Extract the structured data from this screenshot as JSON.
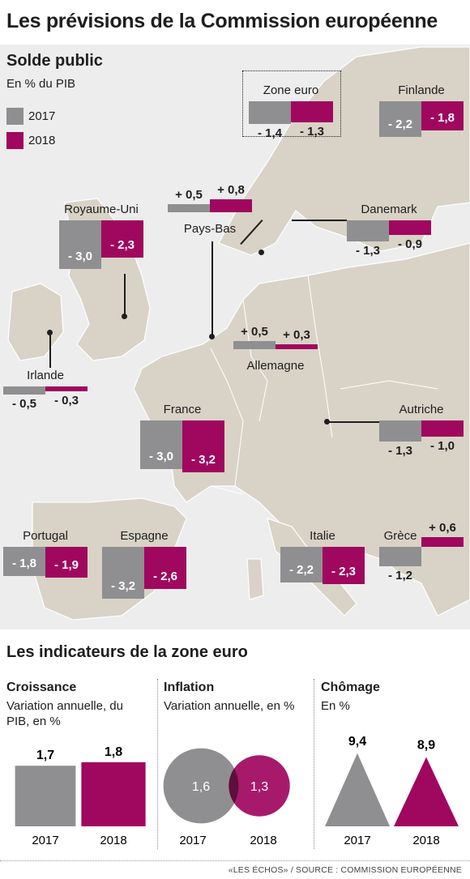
{
  "header": {
    "title": "Les prévisions de la Commission européenne",
    "balance_title": "Solde public",
    "balance_unit": "En % du PIB",
    "indicators_title": "Les indicateurs de la zone euro",
    "footer": "«LES ÉCHOS» / SOURCE : COMMISSION EUROPÉENNE"
  },
  "legend": [
    {
      "label": "2017",
      "color": "#8f8f91"
    },
    {
      "label": "2018",
      "color": "#a0075e"
    }
  ],
  "colors": {
    "year2017": "#8f8f91",
    "year2018": "#a0075e",
    "land": "#d8d3c6",
    "sea": "#ededed",
    "border": "#ffffff"
  },
  "chart_data": [
    {
      "type": "bar",
      "title": "Solde public",
      "subtitle": "En % du PIB",
      "series_names": [
        "2017",
        "2018"
      ],
      "countries": [
        {
          "name": "Zone euro",
          "v2017": "- 1,4",
          "v2018": "- 1,3",
          "n2017": -1.4,
          "n2018": -1.3
        },
        {
          "name": "Finlande",
          "v2017": "- 2,2",
          "v2018": "- 1,8",
          "n2017": -2.2,
          "n2018": -1.8
        },
        {
          "name": "Pays-Bas",
          "v2017": "+ 0,5",
          "v2018": "+ 0,8",
          "n2017": 0.5,
          "n2018": 0.8
        },
        {
          "name": "Royaume-Uni",
          "v2017": "- 3,0",
          "v2018": "- 2,3",
          "n2017": -3.0,
          "n2018": -2.3
        },
        {
          "name": "Danemark",
          "v2017": "- 1,3",
          "v2018": "- 0,9",
          "n2017": -1.3,
          "n2018": -0.9
        },
        {
          "name": "Irlande",
          "v2017": "- 0,5",
          "v2018": "- 0,3",
          "n2017": -0.5,
          "n2018": -0.3
        },
        {
          "name": "Allemagne",
          "v2017": "+ 0,5",
          "v2018": "+ 0,3",
          "n2017": 0.5,
          "n2018": 0.3
        },
        {
          "name": "France",
          "v2017": "- 3,0",
          "v2018": "- 3,2",
          "n2017": -3.0,
          "n2018": -3.2
        },
        {
          "name": "Autriche",
          "v2017": "- 1,3",
          "v2018": "- 1,0",
          "n2017": -1.3,
          "n2018": -1.0
        },
        {
          "name": "Portugal",
          "v2017": "- 1,8",
          "v2018": "- 1,9",
          "n2017": -1.8,
          "n2018": -1.9
        },
        {
          "name": "Espagne",
          "v2017": "- 3,2",
          "v2018": "- 2,6",
          "n2017": -3.2,
          "n2018": -2.6
        },
        {
          "name": "Italie",
          "v2017": "- 2,2",
          "v2018": "- 2,3",
          "n2017": -2.2,
          "n2018": -2.3
        },
        {
          "name": "Grèce",
          "v2017": "- 1,2",
          "v2018": "+ 0,6",
          "n2017": -1.2,
          "n2018": 0.6
        }
      ]
    },
    {
      "type": "bar",
      "title": "Croissance",
      "subtitle": "Variation annuelle, du PIB, en %",
      "categories": [
        "2017",
        "2018"
      ],
      "values": [
        1.7,
        1.8
      ],
      "labels": [
        "1,7",
        "1,8"
      ]
    },
    {
      "type": "bubble",
      "title": "Inflation",
      "subtitle": "Variation annuelle, en %",
      "categories": [
        "2017",
        "2018"
      ],
      "values": [
        1.6,
        1.3
      ],
      "labels": [
        "1,6",
        "1,3"
      ]
    },
    {
      "type": "triangle",
      "title": "Chômage",
      "subtitle": "En %",
      "categories": [
        "2017",
        "2018"
      ],
      "values": [
        9.4,
        8.9
      ],
      "labels": [
        "9,4",
        "8,9"
      ]
    }
  ]
}
